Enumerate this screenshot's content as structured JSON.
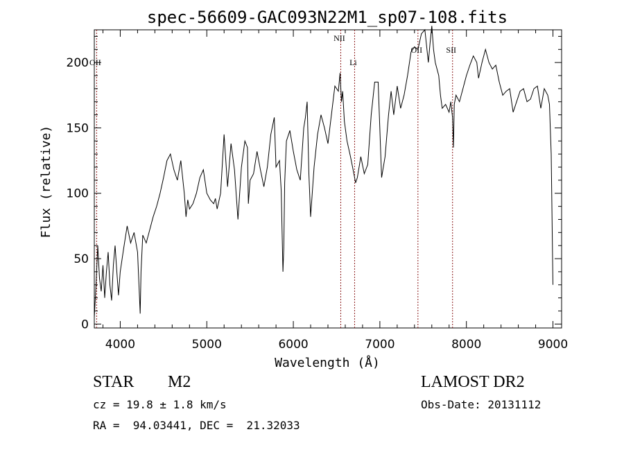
{
  "chart_data": {
    "type": "line",
    "title": "spec-56609-GAC093N22M1_sp07-108.fits",
    "xlabel": "Wavelength (Å)",
    "ylabel": "Flux (relative)",
    "xlim": [
      3700,
      9100
    ],
    "ylim": [
      -3,
      225
    ],
    "x_ticks": [
      4000,
      5000,
      6000,
      7000,
      8000,
      9000
    ],
    "y_ticks": [
      0,
      50,
      100,
      150,
      200
    ],
    "grid": false,
    "line_color": "#000000",
    "marker_color": "#8b1a1a",
    "lines": [
      {
        "label": "OII",
        "wavelength": 3727
      },
      {
        "label": "NII",
        "wavelength": 6548
      },
      {
        "label": "Li",
        "wavelength": 6708
      },
      {
        "label": "OII",
        "wavelength": 7440
      },
      {
        "label": "SII",
        "wavelength": 7840
      }
    ],
    "spectrum_x": [
      3700,
      3720,
      3740,
      3760,
      3780,
      3800,
      3820,
      3840,
      3860,
      3880,
      3900,
      3920,
      3940,
      3960,
      3980,
      4000,
      4040,
      4080,
      4120,
      4160,
      4200,
      4230,
      4240,
      4260,
      4300,
      4340,
      4380,
      4420,
      4460,
      4500,
      4540,
      4580,
      4620,
      4660,
      4700,
      4740,
      4760,
      4780,
      4800,
      4840,
      4880,
      4920,
      4960,
      5000,
      5040,
      5080,
      5100,
      5120,
      5160,
      5200,
      5240,
      5280,
      5320,
      5360,
      5400,
      5440,
      5470,
      5480,
      5500,
      5540,
      5580,
      5620,
      5660,
      5700,
      5740,
      5780,
      5800,
      5840,
      5860,
      5880,
      5890,
      5900,
      5920,
      5960,
      6000,
      6040,
      6080,
      6120,
      6140,
      6160,
      6180,
      6200,
      6240,
      6280,
      6320,
      6360,
      6400,
      6440,
      6480,
      6520,
      6540,
      6556,
      6570,
      6590,
      6620,
      6660,
      6700,
      6720,
      6740,
      6780,
      6820,
      6860,
      6900,
      6940,
      6980,
      7020,
      7060,
      7100,
      7130,
      7140,
      7160,
      7200,
      7240,
      7280,
      7320,
      7360,
      7400,
      7440,
      7480,
      7520,
      7560,
      7580,
      7600,
      7620,
      7640,
      7680,
      7700,
      7720,
      7760,
      7800,
      7820,
      7840,
      7850,
      7860,
      7880,
      7920,
      7960,
      8000,
      8040,
      8080,
      8120,
      8140,
      8180,
      8220,
      8260,
      8300,
      8340,
      8380,
      8420,
      8460,
      8500,
      8540,
      8580,
      8620,
      8660,
      8700,
      8740,
      8780,
      8820,
      8860,
      8900,
      8940,
      8960,
      8980,
      9000
    ],
    "spectrum_y": [
      5,
      30,
      60,
      35,
      25,
      45,
      20,
      40,
      55,
      30,
      18,
      45,
      60,
      40,
      22,
      40,
      58,
      75,
      62,
      70,
      55,
      8,
      40,
      68,
      62,
      72,
      82,
      90,
      100,
      112,
      125,
      130,
      118,
      110,
      125,
      100,
      82,
      95,
      88,
      92,
      100,
      112,
      118,
      100,
      95,
      92,
      96,
      88,
      100,
      145,
      105,
      138,
      118,
      80,
      120,
      140,
      135,
      92,
      110,
      115,
      132,
      118,
      105,
      120,
      145,
      158,
      120,
      125,
      102,
      40,
      58,
      108,
      140,
      148,
      132,
      118,
      110,
      150,
      158,
      170,
      115,
      82,
      120,
      145,
      160,
      150,
      138,
      160,
      182,
      178,
      192,
      170,
      178,
      155,
      140,
      128,
      115,
      108,
      112,
      128,
      115,
      122,
      160,
      185,
      185,
      112,
      128,
      160,
      178,
      172,
      160,
      182,
      165,
      175,
      190,
      208,
      212,
      210,
      222,
      225,
      200,
      215,
      228,
      210,
      200,
      190,
      175,
      165,
      168,
      162,
      170,
      158,
      135,
      168,
      175,
      170,
      180,
      190,
      198,
      205,
      200,
      188,
      200,
      210,
      200,
      195,
      198,
      185,
      175,
      178,
      180,
      162,
      170,
      178,
      180,
      170,
      172,
      180,
      182,
      165,
      180,
      175,
      168,
      130,
      30
    ]
  }
}
